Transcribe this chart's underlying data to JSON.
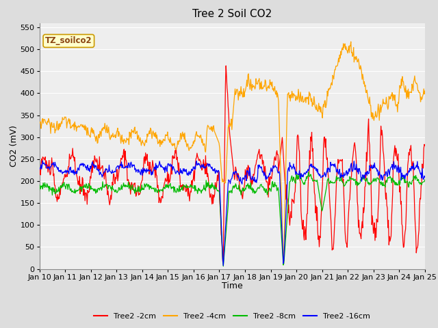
{
  "title": "Tree 2 Soil CO2",
  "xlabel": "Time",
  "ylabel": "CO2 (mV)",
  "ylim": [
    0,
    560
  ],
  "yticks": [
    0,
    50,
    100,
    150,
    200,
    250,
    300,
    350,
    400,
    450,
    500,
    550
  ],
  "xticklabels": [
    "Jan 10",
    "Jan 11",
    "Jan 12",
    "Jan 13",
    "Jan 14",
    "Jan 15",
    "Jan 16",
    "Jan 17",
    "Jan 18",
    "Jan 19",
    "Jan 20",
    "Jan 21",
    "Jan 22",
    "Jan 23",
    "Jan 24",
    "Jan 25"
  ],
  "line_colors": {
    "2cm": "#ff0000",
    "4cm": "#ffa500",
    "8cm": "#00bb00",
    "16cm": "#0000ff"
  },
  "legend_labels": [
    "Tree2 -2cm",
    "Tree2 -4cm",
    "Tree2 -8cm",
    "Tree2 -16cm"
  ],
  "inset_label": "TZ_soilco2",
  "background_color": "#dddddd",
  "plot_bg_color": "#eeeeee",
  "grid_color": "#ffffff",
  "title_fontsize": 11,
  "axis_label_fontsize": 9,
  "tick_fontsize": 8,
  "legend_fontsize": 8
}
